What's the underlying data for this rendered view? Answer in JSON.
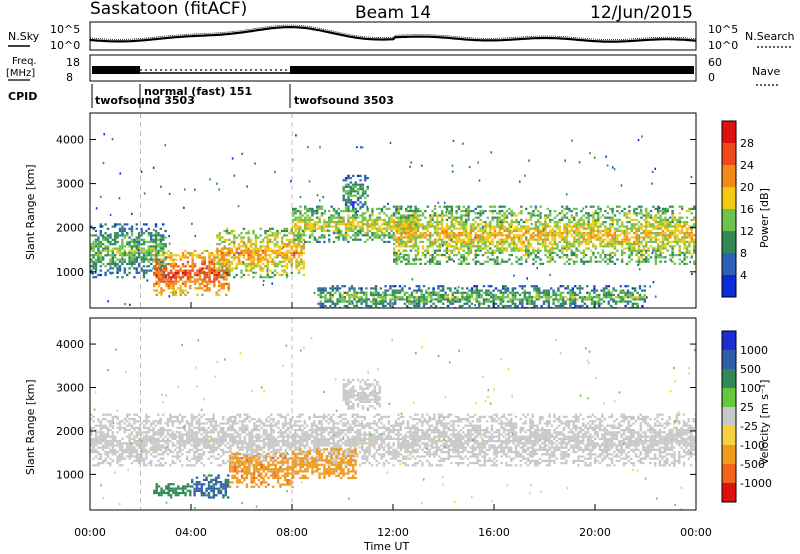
{
  "header": {
    "station": "Saskatoon (fitACF)",
    "beam": "Beam 14",
    "date": "12/Jun/2015"
  },
  "noise_panel": {
    "left_label": "N.Sky",
    "right_label": "N.Search",
    "left_ticks": [
      "10^5",
      "10^0"
    ],
    "right_ticks": [
      "10^5",
      "10^0"
    ]
  },
  "freq_panel": {
    "left_label_1": "Freq.",
    "left_label_2": "[MHz]",
    "right_label": "Nave",
    "left_ticks": [
      "18",
      "8"
    ],
    "right_ticks": [
      "60",
      "0"
    ]
  },
  "cpid": {
    "label": "CPID",
    "segments": [
      {
        "name": "twofsound 3503",
        "start_hour": 0.0,
        "end_hour": 2.0
      },
      {
        "name": "normal (fast) 151",
        "start_hour": 2.0,
        "end_hour": 8.0
      },
      {
        "name": "twofsound 3503",
        "start_hour": 8.0,
        "end_hour": 24.0
      }
    ]
  },
  "chart_data": [
    {
      "type": "heatmap",
      "title": "",
      "quantity": "Power",
      "ylabel": "Slant Range [km]",
      "xlabel": "",
      "ylim": [
        180,
        4600
      ],
      "xlim_hours": [
        0,
        24
      ],
      "yticks": [
        1000,
        2000,
        3000,
        4000
      ],
      "colorbar": {
        "label": "Power [dB]",
        "ticks": [
          "4",
          "8",
          "12",
          "16",
          "20",
          "24",
          "28"
        ],
        "colors": [
          "#0b2bd8",
          "#2f5fb8",
          "#2f8a58",
          "#6cc24a",
          "#f2c810",
          "#f28a1a",
          "#ee4a1c",
          "#e01010"
        ]
      },
      "features": [
        {
          "start_hour": 0.0,
          "end_hour": 3.0,
          "range_low": 900,
          "range_high": 2100,
          "power_db": 10
        },
        {
          "start_hour": 2.5,
          "end_hour": 5.5,
          "range_low": 500,
          "range_high": 1500,
          "power_db": 22
        },
        {
          "start_hour": 5.0,
          "end_hour": 8.5,
          "range_low": 900,
          "range_high": 2000,
          "power_db": 17
        },
        {
          "start_hour": 8.0,
          "end_hour": 13.0,
          "range_low": 1700,
          "range_high": 2500,
          "power_db": 14
        },
        {
          "start_hour": 10.0,
          "end_hour": 11.0,
          "range_low": 2500,
          "range_high": 3200,
          "power_db": 9
        },
        {
          "start_hour": 12.0,
          "end_hour": 24.0,
          "range_low": 1200,
          "range_high": 2500,
          "power_db": 15
        },
        {
          "start_hour": 9.0,
          "end_hour": 22.0,
          "range_low": 200,
          "range_high": 700,
          "power_db": 10
        }
      ]
    },
    {
      "type": "heatmap",
      "title": "",
      "quantity": "Velocity",
      "ylabel": "Slant Range [km]",
      "xlabel": "Time UT",
      "ylim": [
        180,
        4600
      ],
      "xlim_hours": [
        0,
        24
      ],
      "yticks": [
        1000,
        2000,
        3000,
        4000
      ],
      "xticks": [
        "00:00",
        "04:00",
        "08:00",
        "12:00",
        "16:00",
        "20:00",
        "00:00"
      ],
      "colorbar": {
        "label": "Velocity [m s⁻¹]",
        "ticks": [
          "1000",
          "500",
          "100",
          "25",
          "-25",
          "-100",
          "-500",
          "-1000"
        ],
        "colors": [
          "#1a2ed1",
          "#2f5fa8",
          "#2f8a58",
          "#64c83a",
          "#c8c8c8",
          "#f5d040",
          "#f09a20",
          "#f06418",
          "#e01010"
        ]
      },
      "features": [
        {
          "start_hour": 0.0,
          "end_hour": 24.0,
          "range_low": 1200,
          "range_high": 2400,
          "velocity": 0
        },
        {
          "start_hour": 2.5,
          "end_hour": 4.0,
          "range_low": 450,
          "range_high": 800,
          "velocity": 200
        },
        {
          "start_hour": 4.0,
          "end_hour": 5.5,
          "range_low": 450,
          "range_high": 1000,
          "velocity": 600
        },
        {
          "start_hour": 5.5,
          "end_hour": 8.0,
          "range_low": 700,
          "range_high": 1500,
          "velocity": -400
        },
        {
          "start_hour": 8.0,
          "end_hour": 10.5,
          "range_low": 900,
          "range_high": 1600,
          "velocity": -300
        },
        {
          "start_hour": 10.0,
          "end_hour": 11.5,
          "range_low": 2500,
          "range_high": 3200,
          "velocity": 0
        }
      ]
    }
  ]
}
